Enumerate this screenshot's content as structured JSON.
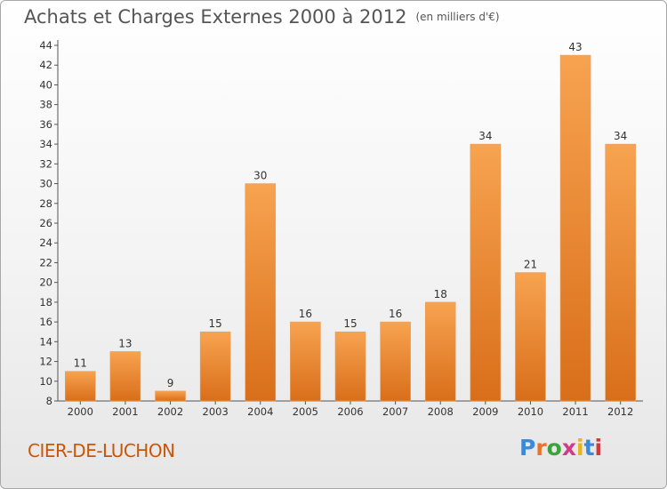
{
  "header": {
    "title": "Achats et Charges Externes 2000 à 2012",
    "unit": "(en milliers d'€)"
  },
  "commune": "CIER-DE-LUCHON",
  "logo": {
    "text": "Proxiti",
    "colors": [
      "#3a8ad8",
      "#e8732a",
      "#3aa33a",
      "#d23a8a",
      "#e8b31c",
      "#3a8ad8",
      "#d23a3a"
    ]
  },
  "chart_data": {
    "type": "bar",
    "title": "Achats et Charges Externes 2000 à 2012",
    "subtitle": "(en milliers d'€)",
    "xlabel": "",
    "ylabel": "",
    "categories": [
      "2000",
      "2001",
      "2002",
      "2003",
      "2004",
      "2005",
      "2006",
      "2007",
      "2008",
      "2009",
      "2010",
      "2011",
      "2012"
    ],
    "values": [
      11,
      13,
      9,
      15,
      30,
      16,
      15,
      16,
      18,
      34,
      21,
      43,
      34
    ],
    "ylim": [
      8,
      44
    ],
    "yticks": [
      8,
      10,
      12,
      14,
      16,
      18,
      20,
      22,
      24,
      26,
      28,
      30,
      32,
      34,
      36,
      38,
      40,
      42,
      44
    ],
    "grid": false,
    "bar_color": "#f0923a"
  }
}
